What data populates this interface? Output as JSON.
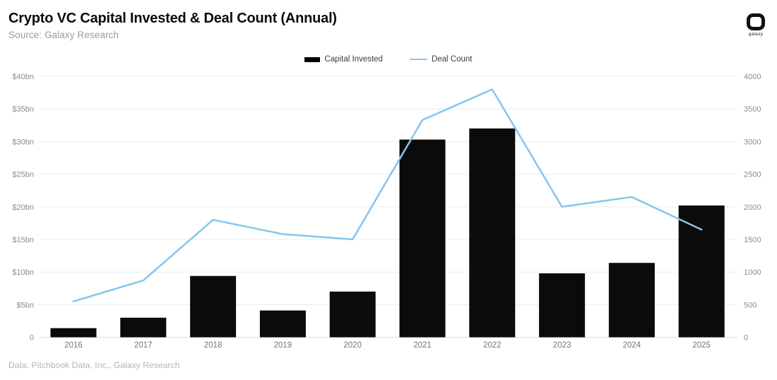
{
  "header": {
    "title": "Crypto VC Capital Invested & Deal Count (Annual)",
    "subtitle": "Source: Galaxy Research",
    "logo_text": "galaxy"
  },
  "legend": {
    "items": [
      {
        "label": "Capital Invested",
        "type": "bar",
        "color": "#000000"
      },
      {
        "label": "Deal Count",
        "type": "line",
        "color": "#85C5EC"
      }
    ]
  },
  "footer": "Data: Pitchbook Data, Inc., Galaxy Research",
  "chart_data": {
    "type": "bar+line combo",
    "title": "Crypto VC Capital Invested & Deal Count (Annual)",
    "categories": [
      "2016",
      "2017",
      "2018",
      "2019",
      "2020",
      "2021",
      "2022",
      "2023",
      "2024",
      "2025"
    ],
    "series": [
      {
        "name": "Capital Invested",
        "type": "bar",
        "axis": "left",
        "unit": "$bn",
        "color": "#0b0b0b",
        "values": [
          1.4,
          3.0,
          9.4,
          4.1,
          7.0,
          30.3,
          32.0,
          9.8,
          11.4,
          20.2
        ]
      },
      {
        "name": "Deal Count",
        "type": "line",
        "axis": "right",
        "unit": "deals",
        "color": "#85C5EC",
        "values": [
          550,
          870,
          1800,
          1580,
          1500,
          3330,
          3800,
          2000,
          2150,
          1650
        ]
      }
    ],
    "left_axis": {
      "label": "",
      "min": 0,
      "max": 40,
      "ticks": [
        "$40bn",
        "$35bn",
        "$30bn",
        "$25bn",
        "$20bn",
        "$15bn",
        "$10bn",
        "$5bn",
        "0"
      ]
    },
    "right_axis": {
      "label": "",
      "min": 0,
      "max": 4000,
      "ticks": [
        "4000",
        "3500",
        "3000",
        "2500",
        "2000",
        "1500",
        "1000",
        "500",
        "0"
      ]
    },
    "grid": true,
    "legend_position": "top-center"
  }
}
